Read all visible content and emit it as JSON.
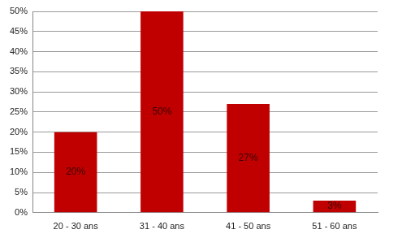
{
  "chart_data": {
    "type": "bar",
    "categories": [
      "20 - 30 ans",
      "31 - 40 ans",
      "41 - 50 ans",
      "51 - 60 ans"
    ],
    "values": [
      20,
      50,
      27,
      3
    ],
    "value_labels": [
      "20%",
      "50%",
      "27%",
      "3%"
    ],
    "data_labels": true,
    "color": "#c00000",
    "ylim": [
      0,
      50
    ],
    "yticks": [
      {
        "value": 0,
        "label": "0%"
      },
      {
        "value": 5,
        "label": "5%"
      },
      {
        "value": 10,
        "label": "10%"
      },
      {
        "value": 15,
        "label": "15%"
      },
      {
        "value": 20,
        "label": "20%"
      },
      {
        "value": 25,
        "label": "25%"
      },
      {
        "value": 30,
        "label": "30%"
      },
      {
        "value": 35,
        "label": "35%"
      },
      {
        "value": 40,
        "label": "40%"
      },
      {
        "value": 45,
        "label": "45%"
      },
      {
        "value": 50,
        "label": "50%"
      }
    ],
    "grid": true
  }
}
